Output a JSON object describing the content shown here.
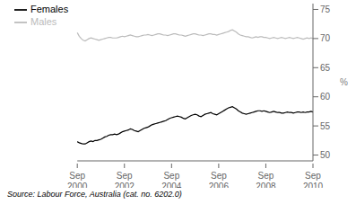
{
  "chart_data": {
    "type": "line",
    "categories": [
      "Sep\n2000",
      null,
      null,
      null,
      null,
      null,
      null,
      null,
      null,
      null,
      null,
      null,
      null,
      null,
      null,
      null,
      null,
      null,
      null,
      null,
      null,
      null,
      null,
      null,
      "Sep\n2002",
      null,
      null,
      null,
      null,
      null,
      null,
      null,
      null,
      null,
      null,
      null,
      null,
      null,
      null,
      null,
      null,
      null,
      null,
      null,
      null,
      null,
      null,
      null,
      "Sep\n2004",
      null,
      null,
      null,
      null,
      null,
      null,
      null,
      null,
      null,
      null,
      null,
      null,
      null,
      null,
      null,
      null,
      null,
      null,
      null,
      null,
      null,
      null,
      null,
      "Sep\n2006",
      null,
      null,
      null,
      null,
      null,
      null,
      null,
      null,
      null,
      null,
      null,
      null,
      null,
      null,
      null,
      null,
      null,
      null,
      null,
      null,
      null,
      null,
      null,
      "Sep\n2008",
      null,
      null,
      null,
      null,
      null,
      null,
      null,
      null,
      null,
      null,
      null,
      null,
      null,
      null,
      null,
      null,
      null,
      null,
      null,
      null,
      null,
      null,
      null,
      "Sep\n2010"
    ],
    "series": [
      {
        "name": "Females",
        "color": "#000000",
        "values": [
          52.3,
          52.1,
          52.0,
          51.9,
          51.9,
          52.1,
          52.3,
          52.4,
          52.3,
          52.5,
          52.5,
          52.6,
          52.7,
          52.9,
          53.1,
          53.2,
          53.4,
          53.5,
          53.5,
          53.6,
          53.5,
          53.6,
          53.8,
          54.0,
          54.1,
          54.2,
          54.3,
          54.5,
          54.4,
          54.2,
          54.1,
          54.0,
          54.2,
          54.4,
          54.6,
          54.7,
          54.8,
          55.0,
          55.2,
          55.3,
          55.4,
          55.5,
          55.6,
          55.7,
          55.8,
          55.9,
          56.1,
          56.3,
          56.4,
          56.5,
          56.6,
          56.7,
          56.6,
          56.5,
          56.3,
          56.2,
          56.4,
          56.6,
          56.8,
          56.9,
          57.0,
          56.9,
          56.7,
          56.6,
          56.8,
          57.0,
          57.1,
          57.2,
          57.3,
          57.1,
          57.0,
          56.9,
          57.1,
          57.3,
          57.5,
          57.7,
          57.9,
          58.1,
          58.2,
          58.3,
          58.1,
          57.9,
          57.6,
          57.4,
          57.2,
          57.1,
          57.0,
          57.1,
          57.2,
          57.3,
          57.4,
          57.5,
          57.6,
          57.6,
          57.5,
          57.6,
          57.5,
          57.4,
          57.3,
          57.4,
          57.5,
          57.4,
          57.3,
          57.3,
          57.2,
          57.2,
          57.3,
          57.4,
          57.3,
          57.3,
          57.2,
          57.3,
          57.4,
          57.4,
          57.3,
          57.4,
          57.3,
          57.4,
          57.4,
          57.5,
          57.4
        ]
      },
      {
        "name": "Males",
        "color": "#bbbbbb",
        "values": [
          71.0,
          70.4,
          70.0,
          69.7,
          69.6,
          69.8,
          70.0,
          70.1,
          70.0,
          69.9,
          69.8,
          69.7,
          69.8,
          69.9,
          70.0,
          70.1,
          70.2,
          70.2,
          70.1,
          70.1,
          70.1,
          70.2,
          70.3,
          70.4,
          70.3,
          70.4,
          70.5,
          70.6,
          70.5,
          70.4,
          70.3,
          70.3,
          70.4,
          70.5,
          70.6,
          70.6,
          70.7,
          70.6,
          70.5,
          70.6,
          70.7,
          70.8,
          70.8,
          70.7,
          70.6,
          70.6,
          70.5,
          70.6,
          70.7,
          70.8,
          70.8,
          70.7,
          70.6,
          70.6,
          70.5,
          70.4,
          70.5,
          70.6,
          70.7,
          70.8,
          70.8,
          70.7,
          70.6,
          70.6,
          70.5,
          70.6,
          70.7,
          70.8,
          70.8,
          70.7,
          70.7,
          70.6,
          70.7,
          70.8,
          70.9,
          71.0,
          71.1,
          71.2,
          71.4,
          71.5,
          71.3,
          71.1,
          70.8,
          70.6,
          70.5,
          70.4,
          70.3,
          70.3,
          70.2,
          70.1,
          70.2,
          70.3,
          70.2,
          70.3,
          70.3,
          70.2,
          70.2,
          70.1,
          70.0,
          70.1,
          70.2,
          70.1,
          70.0,
          70.1,
          70.2,
          70.1,
          70.0,
          70.1,
          70.2,
          70.1,
          70.0,
          70.1,
          70.2,
          70.1,
          70.0,
          69.9,
          70.0,
          70.1,
          70.0,
          70.1,
          70.0
        ]
      }
    ],
    "ylim": [
      49,
      76
    ],
    "yticks": [
      50,
      55,
      60,
      65,
      70,
      75
    ],
    "ylabel": "%",
    "legend": "upper left",
    "grid": false,
    "annotations": [
      "Source: Labour Force, Australia (cat. no. 6202.0)"
    ]
  }
}
